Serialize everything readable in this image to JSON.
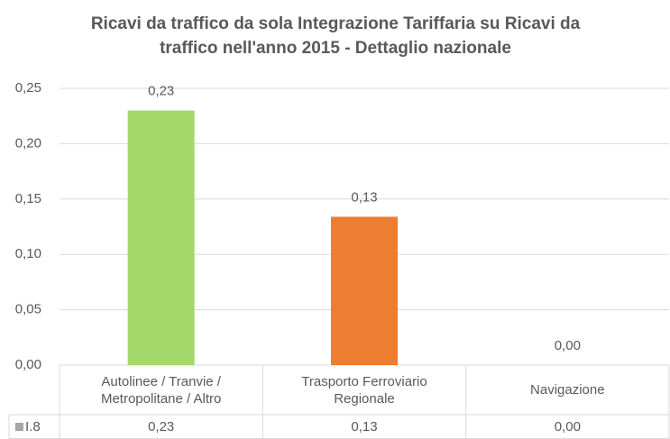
{
  "chart_data": {
    "type": "bar",
    "title": "Ricavi da traffico da sola Integrazione Tariffaria su Ricavi da traffico nell'anno 2015 - Dettaglio nazionale",
    "categories": [
      "Autolinee / Tranvie / Metropolitane / Altro",
      "Trasporto Ferroviario Regionale",
      "Navigazione"
    ],
    "series": [
      {
        "name": "I.8",
        "color": "#a5a5a5",
        "colors": [
          "#a5d86a",
          "#ed7d31",
          "#a5a5a5"
        ],
        "values": [
          0.23,
          0.134,
          0
        ],
        "value_labels": [
          "0,23",
          "0,13",
          "0,00"
        ]
      }
    ],
    "ylim": [
      0,
      0.25
    ],
    "yticks": [
      {
        "value": 0,
        "label": "0,00"
      },
      {
        "value": 0.05,
        "label": "0,05"
      },
      {
        "value": 0.1,
        "label": "0,10"
      },
      {
        "value": 0.15,
        "label": "0,15"
      },
      {
        "value": 0.2,
        "label": "0,20"
      },
      {
        "value": 0.25,
        "label": "0,25"
      }
    ],
    "grid": true,
    "data_table": true
  }
}
